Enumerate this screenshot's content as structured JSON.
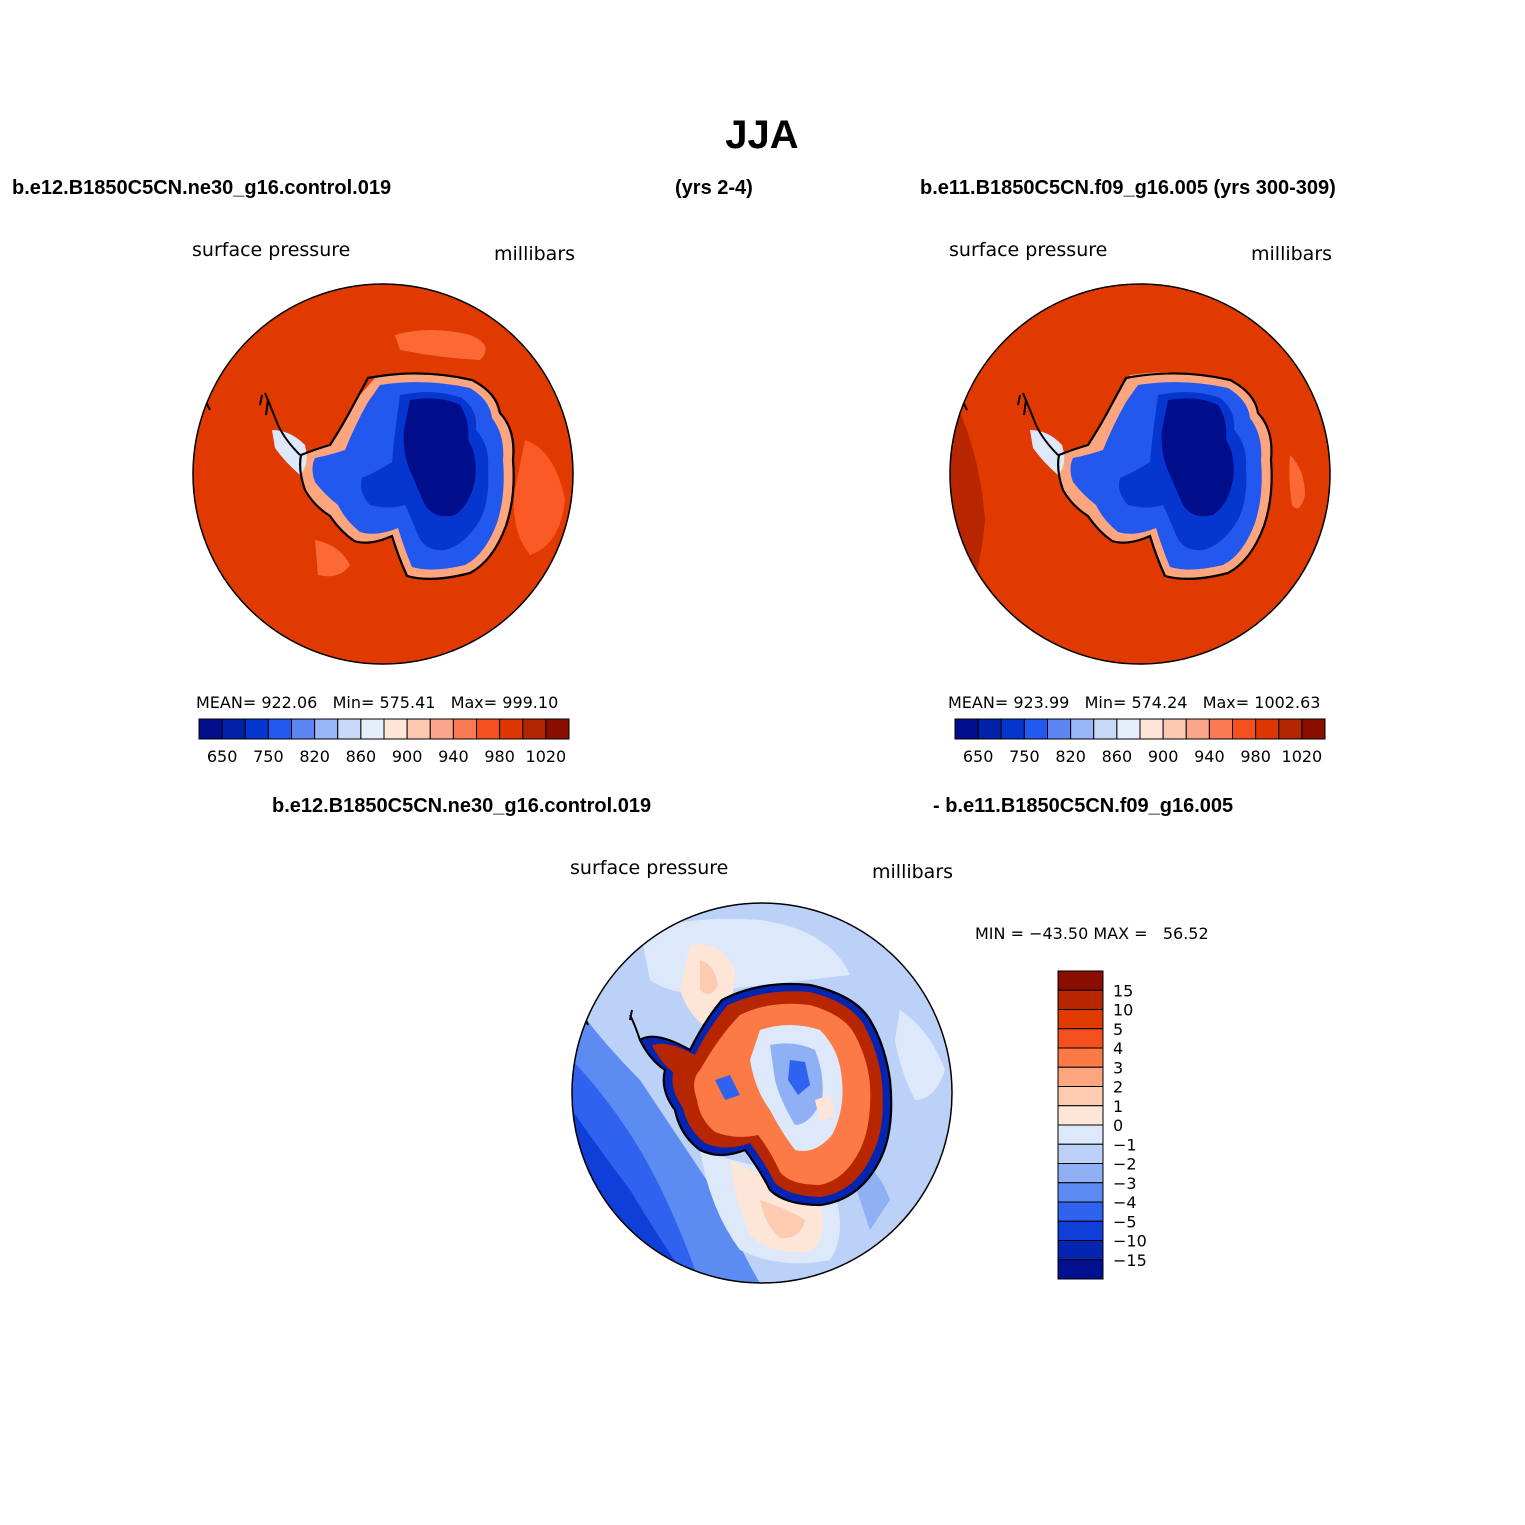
{
  "title": "JJA",
  "top_left_header": "b.e12.B1850C5CN.ne30_g16.control.019",
  "top_mid_header": "(yrs 2-4)",
  "top_right_header": "b.e11.B1850C5CN.f09_g16.005 (yrs 300-309)",
  "bottom_header_left": "b.e12.B1850C5CN.ne30_g16.control.019",
  "bottom_header_right": "- b.e11.B1850C5CN.f09_g16.005",
  "panels": [
    {
      "variable": "surface pressure",
      "units": "millibars",
      "stats": "MEAN= 922.06   Min= 575.41   Max= 999.10"
    },
    {
      "variable": "surface pressure",
      "units": "millibars",
      "stats": "MEAN= 923.99   Min= 574.24   Max= 1002.63"
    },
    {
      "variable": "surface pressure",
      "units": "millibars",
      "stats": "MIN = −43.50 MAX =   56.52"
    }
  ],
  "colorbar_levels_hbar": [
    "650",
    "750",
    "820",
    "860",
    "900",
    "940",
    "980",
    "1020"
  ],
  "colorbar_colors_hbar": [
    "#000e8c",
    "#0022a8",
    "#0536d0",
    "#2358ef",
    "#5e86f3",
    "#99b6f6",
    "#c8d8f7",
    "#e6eefb",
    "#fde6d8",
    "#fcc9b0",
    "#fba68a",
    "#f97a53",
    "#f4501e",
    "#dd3700",
    "#b22500",
    "#8a0e00"
  ],
  "colorbar_levels_vbar": [
    "15",
    "10",
    "5",
    "4",
    "3",
    "2",
    "1",
    "0",
    "−1",
    "−2",
    "−3",
    "−4",
    "−5",
    "−10",
    "−15"
  ],
  "colorbar_colors_vbar": [
    "#8a0e00",
    "#b82600",
    "#e03a00",
    "#f4501e",
    "#fb7a45",
    "#fca57e",
    "#fdcbb0",
    "#fde6d8",
    "#dde8fb",
    "#bcd1f8",
    "#8fb0f5",
    "#5c8bf1",
    "#2f62ef",
    "#0f3fd8",
    "#0525b0",
    "#00108e"
  ],
  "color_ocean_top": "#e03a00",
  "color_ocean_diff_light": "#dde8fb"
}
